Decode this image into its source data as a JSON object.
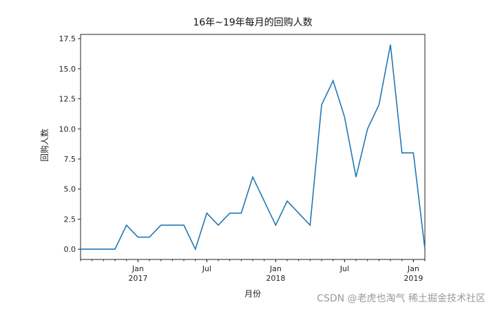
{
  "chart_data": {
    "type": "line",
    "title": "16年~19年每月的回购人数",
    "xlabel": "月份",
    "ylabel": "回购人数",
    "x": [
      "2016-08",
      "2016-09",
      "2016-10",
      "2016-11",
      "2016-12",
      "2017-01",
      "2017-02",
      "2017-03",
      "2017-04",
      "2017-05",
      "2017-06",
      "2017-07",
      "2017-08",
      "2017-09",
      "2017-10",
      "2017-11",
      "2017-12",
      "2018-01",
      "2018-02",
      "2018-03",
      "2018-04",
      "2018-05",
      "2018-06",
      "2018-07",
      "2018-08",
      "2018-09",
      "2018-10",
      "2018-11",
      "2018-12",
      "2019-01",
      "2019-02"
    ],
    "series": [
      {
        "name": "回购人数",
        "color": "#1f77b4",
        "values": [
          0,
          0,
          0,
          0,
          2,
          1,
          1,
          2,
          2,
          2,
          0,
          3,
          2,
          3,
          3,
          6,
          4,
          2,
          4,
          3,
          2,
          12,
          14,
          11,
          6,
          10,
          12,
          17,
          8,
          8,
          0
        ]
      }
    ],
    "yticks": [
      "0.0",
      "2.5",
      "5.0",
      "7.5",
      "10.0",
      "12.5",
      "15.0",
      "17.5"
    ],
    "ylim": [
      -0.85,
      17.85
    ],
    "xticks": [
      {
        "month": "2017-01",
        "label": "Jan",
        "sublabel": "2017"
      },
      {
        "month": "2017-07",
        "label": "Jul",
        "sublabel": ""
      },
      {
        "month": "2018-01",
        "label": "Jan",
        "sublabel": "2018"
      },
      {
        "month": "2018-07",
        "label": "Jul",
        "sublabel": ""
      },
      {
        "month": "2019-01",
        "label": "Jan",
        "sublabel": "2019"
      }
    ],
    "grid": false,
    "legend": "none"
  },
  "watermark": "CSDN @老虎也淘气 稀土掘金技术社区"
}
